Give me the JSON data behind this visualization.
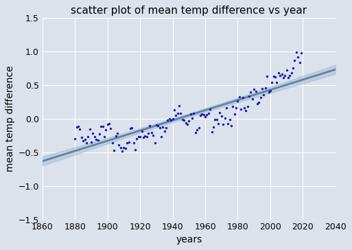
{
  "title": "scatter plot of mean temp difference vs year",
  "xlabel": "years",
  "ylabel": "mean temp difference",
  "xlim": [
    1860,
    2040
  ],
  "ylim": [
    -1.5,
    1.5
  ],
  "bg_color": "#dce2ec",
  "grid_color": "white",
  "dot_color": "#1a1ab5",
  "line_color": "#5b85a6",
  "ci_color": "#a8b8d0",
  "years": [
    1880,
    1881,
    1882,
    1883,
    1884,
    1885,
    1886,
    1887,
    1888,
    1889,
    1890,
    1891,
    1892,
    1893,
    1894,
    1895,
    1896,
    1897,
    1898,
    1899,
    1900,
    1901,
    1902,
    1903,
    1904,
    1905,
    1906,
    1907,
    1908,
    1909,
    1910,
    1911,
    1912,
    1913,
    1914,
    1915,
    1916,
    1917,
    1918,
    1919,
    1920,
    1921,
    1922,
    1923,
    1924,
    1925,
    1926,
    1927,
    1928,
    1929,
    1930,
    1931,
    1932,
    1933,
    1934,
    1935,
    1936,
    1937,
    1938,
    1939,
    1940,
    1941,
    1942,
    1943,
    1944,
    1945,
    1946,
    1947,
    1948,
    1949,
    1950,
    1951,
    1952,
    1953,
    1954,
    1955,
    1956,
    1957,
    1958,
    1959,
    1960,
    1961,
    1962,
    1963,
    1964,
    1965,
    1966,
    1967,
    1968,
    1969,
    1970,
    1971,
    1972,
    1973,
    1974,
    1975,
    1976,
    1977,
    1978,
    1979,
    1980,
    1981,
    1982,
    1983,
    1984,
    1985,
    1986,
    1987,
    1988,
    1989,
    1990,
    1991,
    1992,
    1993,
    1994,
    1995,
    1996,
    1997,
    1998,
    1999,
    2000,
    2001,
    2002,
    2003,
    2004,
    2005,
    2006,
    2007,
    2008,
    2009,
    2010,
    2011,
    2012,
    2013,
    2014,
    2015,
    2016,
    2017,
    2018,
    2019
  ],
  "temps": [
    -0.3,
    -0.12,
    -0.11,
    -0.16,
    -0.28,
    -0.33,
    -0.31,
    -0.36,
    -0.27,
    -0.16,
    -0.35,
    -0.22,
    -0.27,
    -0.31,
    -0.32,
    -0.23,
    -0.11,
    -0.11,
    -0.27,
    -0.17,
    -0.08,
    -0.07,
    -0.15,
    -0.36,
    -0.47,
    -0.26,
    -0.22,
    -0.39,
    -0.43,
    -0.48,
    -0.43,
    -0.44,
    -0.36,
    -0.35,
    -0.15,
    -0.14,
    -0.36,
    -0.46,
    -0.3,
    -0.27,
    -0.27,
    -0.19,
    -0.28,
    -0.26,
    -0.27,
    -0.22,
    -0.1,
    -0.21,
    -0.25,
    -0.36,
    -0.09,
    -0.1,
    -0.14,
    -0.27,
    -0.13,
    -0.19,
    -0.14,
    -0.02,
    -0.0,
    -0.02,
    0.0,
    0.13,
    0.05,
    0.08,
    0.19,
    0.08,
    -0.01,
    -0.02,
    -0.06,
    -0.08,
    -0.03,
    0.07,
    0.01,
    0.08,
    -0.21,
    -0.17,
    -0.14,
    0.05,
    0.07,
    0.06,
    0.03,
    0.06,
    0.08,
    0.14,
    -0.2,
    -0.12,
    -0.01,
    -0.01,
    -0.07,
    0.09,
    0.04,
    -0.08,
    0.01,
    0.16,
    -0.07,
    -0.01,
    -0.1,
    0.18,
    0.07,
    0.16,
    0.26,
    0.32,
    0.14,
    0.31,
    0.16,
    0.12,
    0.18,
    0.33,
    0.4,
    0.29,
    0.44,
    0.41,
    0.22,
    0.24,
    0.31,
    0.45,
    0.35,
    0.46,
    0.63,
    0.4,
    0.42,
    0.54,
    0.63,
    0.62,
    0.54,
    0.68,
    0.64,
    0.66,
    0.61,
    0.64,
    0.72,
    0.61,
    0.64,
    0.68,
    0.75,
    0.87,
    0.99,
    0.92,
    0.83,
    0.98
  ],
  "title_fontsize": 11,
  "label_fontsize": 10,
  "tick_fontsize": 9,
  "dot_size": 6
}
